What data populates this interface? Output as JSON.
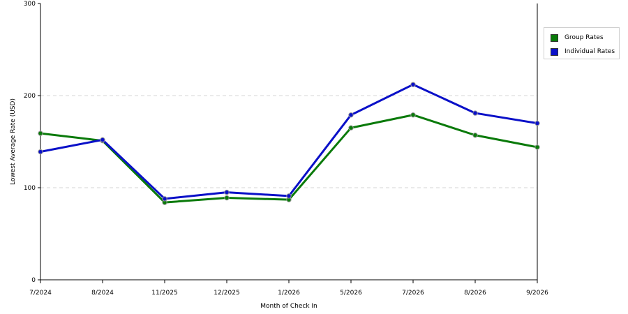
{
  "chart_data": {
    "type": "line",
    "xlabel": "Month of Check In",
    "ylabel": "Lowest Average Rate (USD)",
    "ylim": [
      0,
      300
    ],
    "yticks": [
      0,
      100,
      200,
      300
    ],
    "grid": "horizontal dashed at 100 and 200",
    "legend_position": "right",
    "categories": [
      "7/2024",
      "8/2024",
      "11/2025",
      "12/2025",
      "1/2026",
      "5/2026",
      "7/2026",
      "8/2026",
      "9/2026"
    ],
    "series": [
      {
        "name": "Group Rates",
        "color": "#0a7a0a",
        "values": [
          159,
          151,
          84,
          89,
          87,
          165,
          179,
          157,
          144
        ]
      },
      {
        "name": "Individual Rates",
        "color": "#0a10c8",
        "values": [
          139,
          152,
          88,
          95,
          91,
          179,
          212,
          181,
          170
        ]
      }
    ]
  }
}
